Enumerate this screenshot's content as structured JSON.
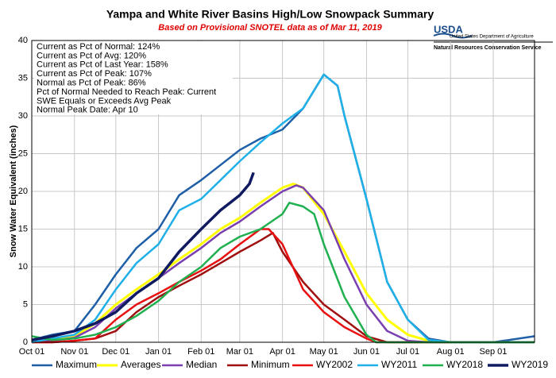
{
  "chart_data": {
    "type": "line",
    "title": "Yampa and White River Basins High/Low Snowpack Summary",
    "subtitle": "Based on Provisional SNOTEL data as of Mar 11, 2019",
    "y_label": "Snow Water Equivalent (inches)",
    "annotations": [
      "Current  as Pct of Normal: 124%",
      "Current  as Pct of Avg: 120%",
      "Current  as Pct of Last Year: 158%",
      "Current  as Pct of Peak: 107%",
      "Normal  as Pct of Peak: 86%",
      "Pct of Normal Needed to Reach Peak: Current",
      "SWE Equals or Exceeds Avg Peak",
      "Normal Peak Date: Apr 10"
    ],
    "xlim": [
      0,
      365
    ],
    "ylim": [
      0,
      40
    ],
    "grid": true,
    "xticks": [
      {
        "value": 0,
        "label": "Oct 01"
      },
      {
        "value": 31,
        "label": "Nov 01"
      },
      {
        "value": 61,
        "label": "Dec 01"
      },
      {
        "value": 92,
        "label": "Jan 01"
      },
      {
        "value": 123,
        "label": "Feb 01"
      },
      {
        "value": 151,
        "label": "Mar 01"
      },
      {
        "value": 182,
        "label": "Apr 01"
      },
      {
        "value": 212,
        "label": "May 01"
      },
      {
        "value": 243,
        "label": "Jun 01"
      },
      {
        "value": 273,
        "label": "Jul 01"
      },
      {
        "value": 304,
        "label": "Aug 01"
      },
      {
        "value": 335,
        "label": "Sep 01"
      }
    ],
    "yticks": [
      0,
      5,
      10,
      15,
      20,
      25,
      30,
      35,
      40
    ],
    "series": [
      {
        "name": "Maximum",
        "color": "#1f5fa8",
        "width": 2.5,
        "x": [
          0,
          15,
          31,
          46,
          61,
          76,
          92,
          107,
          123,
          137,
          151,
          166,
          182,
          197,
          212,
          222,
          227,
          243,
          258,
          273,
          288,
          304,
          335,
          365
        ],
        "values": [
          0.3,
          1,
          1.5,
          5,
          9,
          12.5,
          15,
          19.5,
          21.5,
          23.5,
          25.5,
          27,
          28.2,
          31,
          35.5,
          34,
          30,
          19,
          8,
          3,
          0.5,
          0,
          0,
          0.8
        ]
      },
      {
        "name": "Averages",
        "color": "#ffff00",
        "width": 3,
        "x": [
          0,
          15,
          31,
          46,
          61,
          76,
          92,
          107,
          123,
          137,
          151,
          166,
          182,
          190,
          197,
          212,
          227,
          243,
          258,
          273,
          288,
          304,
          365
        ],
        "values": [
          0,
          0.3,
          0.8,
          2.5,
          5,
          7,
          9,
          11,
          13,
          15,
          16.5,
          18.5,
          20.5,
          21,
          20.5,
          17,
          12,
          6.5,
          3,
          1,
          0.2,
          0,
          0
        ]
      },
      {
        "name": "Median",
        "color": "#7a3fb0",
        "width": 2.5,
        "x": [
          0,
          15,
          31,
          46,
          61,
          76,
          92,
          107,
          123,
          137,
          151,
          166,
          182,
          192,
          197,
          212,
          227,
          243,
          258,
          273,
          288,
          365
        ],
        "values": [
          0,
          0.2,
          0.6,
          2,
          4.5,
          6.5,
          8.5,
          10.5,
          12.5,
          14.5,
          16,
          18,
          20,
          20.8,
          20.5,
          17.5,
          11,
          5,
          1.5,
          0.2,
          0,
          0
        ]
      },
      {
        "name": "Minimum",
        "color": "#a01010",
        "width": 2.5,
        "x": [
          0,
          15,
          31,
          46,
          61,
          76,
          92,
          107,
          123,
          137,
          151,
          166,
          175,
          182,
          197,
          212,
          227,
          243,
          258,
          365
        ],
        "values": [
          0,
          0,
          0.2,
          0.5,
          1.5,
          4,
          6,
          7.5,
          9,
          10.5,
          12,
          13.5,
          14.5,
          12,
          8,
          5,
          3,
          0.8,
          0,
          0
        ]
      },
      {
        "name": "WY2002",
        "color": "#e81010",
        "width": 2.5,
        "x": [
          0,
          15,
          31,
          46,
          61,
          76,
          92,
          107,
          123,
          137,
          151,
          166,
          172,
          182,
          192,
          197,
          212,
          227,
          243,
          250,
          365
        ],
        "values": [
          0,
          0,
          0.2,
          0.5,
          3,
          5,
          6.5,
          8,
          9.5,
          11,
          13,
          15,
          15,
          13,
          9,
          7,
          4,
          2,
          0.5,
          0,
          0
        ]
      },
      {
        "name": "WY2011",
        "color": "#20b0e8",
        "width": 2.5,
        "x": [
          0,
          15,
          31,
          46,
          61,
          76,
          92,
          107,
          123,
          137,
          151,
          166,
          182,
          197,
          212,
          222,
          227,
          243,
          258,
          273,
          288,
          304,
          335,
          365
        ],
        "values": [
          0,
          0.5,
          1,
          3,
          7,
          10.5,
          13,
          17.5,
          19,
          21.5,
          24,
          26.5,
          29,
          31,
          35.5,
          34,
          30,
          19,
          8,
          3,
          0.3,
          0,
          0,
          0
        ]
      },
      {
        "name": "WY2018",
        "color": "#20b050",
        "width": 2.5,
        "x": [
          0,
          15,
          31,
          46,
          61,
          76,
          92,
          107,
          123,
          137,
          151,
          166,
          182,
          187,
          197,
          205,
          212,
          227,
          243,
          250,
          365
        ],
        "values": [
          0.8,
          0.3,
          0.5,
          1,
          2,
          3.5,
          5.5,
          8,
          10,
          12.5,
          14,
          15,
          17,
          18.5,
          18,
          17,
          13,
          6,
          1,
          0,
          0
        ]
      },
      {
        "name": "WY2019",
        "color": "#101a60",
        "width": 3.5,
        "x": [
          0,
          15,
          31,
          46,
          61,
          76,
          92,
          107,
          123,
          137,
          151,
          158,
          161
        ],
        "values": [
          0.3,
          0.8,
          1.5,
          2.5,
          4,
          6.5,
          8.5,
          12,
          15,
          17.5,
          19.5,
          21,
          22.5
        ]
      }
    ]
  },
  "logo": {
    "agency": "USDA",
    "department": "United States Department of Agriculture",
    "service": "Natural Resources Conservation Service"
  }
}
